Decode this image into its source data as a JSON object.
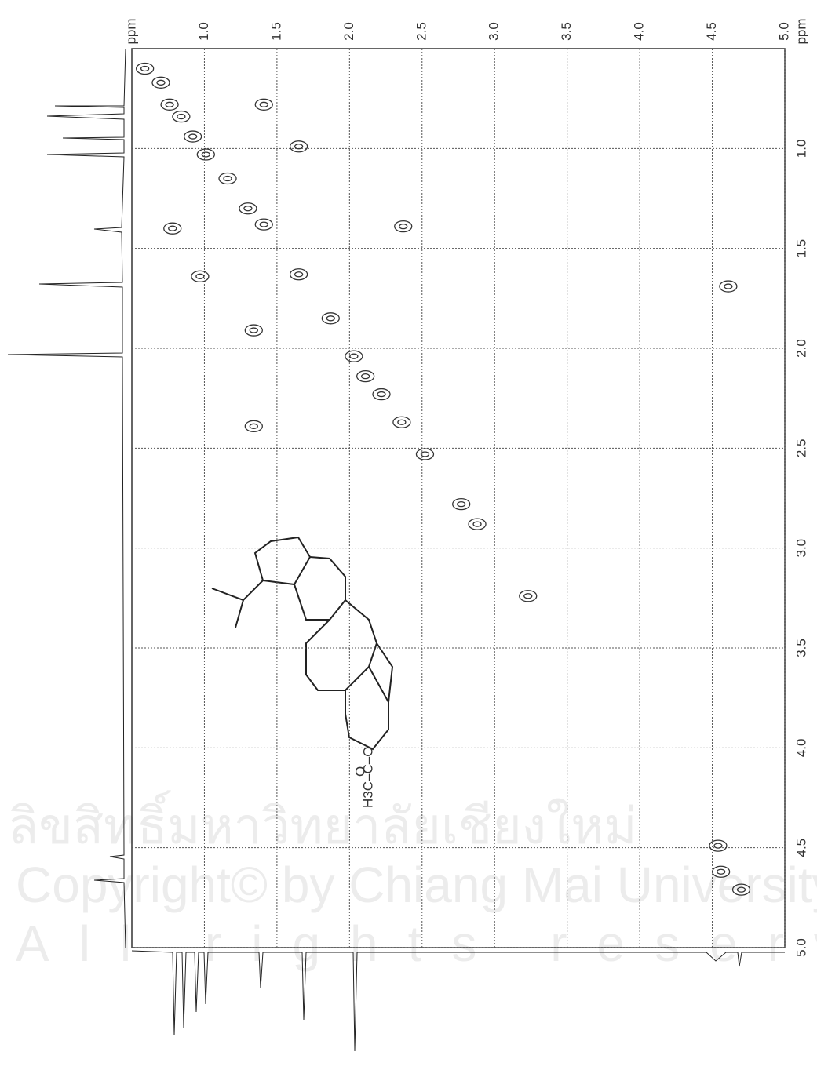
{
  "chart_data": {
    "type": "contour",
    "orientation": "rotated",
    "xlabel": "ppm",
    "ylabel": "ppm",
    "xlim": [
      0.5,
      5.0
    ],
    "ylim": [
      0.5,
      5.0
    ],
    "xticks": [
      {
        "value": 1,
        "label": "1.0"
      },
      {
        "value": 1.5,
        "label": "1.5"
      },
      {
        "value": 2,
        "label": "2.0"
      },
      {
        "value": 2.5,
        "label": "2.5"
      },
      {
        "value": 3,
        "label": "3.0"
      },
      {
        "value": 3.5,
        "label": "3.5"
      },
      {
        "value": 4,
        "label": "4.0"
      },
      {
        "value": 4.5,
        "label": "4.5"
      },
      {
        "value": 5,
        "label": "5.0"
      }
    ],
    "yticks": [
      {
        "value": 1,
        "label": "1.0"
      },
      {
        "value": 1.5,
        "label": "1.5"
      },
      {
        "value": 2,
        "label": "2.0"
      },
      {
        "value": 2.5,
        "label": "2.5"
      },
      {
        "value": 3,
        "label": "3.0"
      },
      {
        "value": 3.5,
        "label": "3.5"
      },
      {
        "value": 4,
        "label": "4.0"
      },
      {
        "value": 4.5,
        "label": "4.5"
      },
      {
        "value": 5,
        "label": "5.0"
      }
    ],
    "grid": true,
    "color": "#333333",
    "x": [
      0.59,
      0.7,
      0.76,
      0.84,
      0.92,
      1.01,
      1.16,
      1.3,
      1.41,
      1.65,
      1.87,
      2.03,
      2.11,
      2.22,
      0.78,
      1.65,
      1.34,
      2.88,
      3.23,
      4.54,
      4.56,
      4.7,
      4.61,
      0.97,
      2.52,
      2.37,
      1.41,
      1.34,
      2.36,
      2.77
    ],
    "values": [
      0.6,
      0.67,
      0.78,
      0.84,
      0.94,
      1.03,
      1.15,
      1.3,
      1.38,
      1.63,
      1.85,
      2.04,
      2.14,
      2.23,
      1.4,
      0.99,
      1.91,
      2.88,
      3.24,
      4.49,
      4.62,
      4.71,
      1.69,
      1.64,
      2.53,
      1.39,
      0.78,
      2.39,
      2.37,
      2.78
    ],
    "annotations": [
      "H3C–C–O",
      "O"
    ],
    "watermark": [
      "ลิขสิทธิ์มหาวิทยาลัยเชียงใหม่",
      "Copyright© by Chiang Mai University",
      "All rights reserved"
    ]
  }
}
